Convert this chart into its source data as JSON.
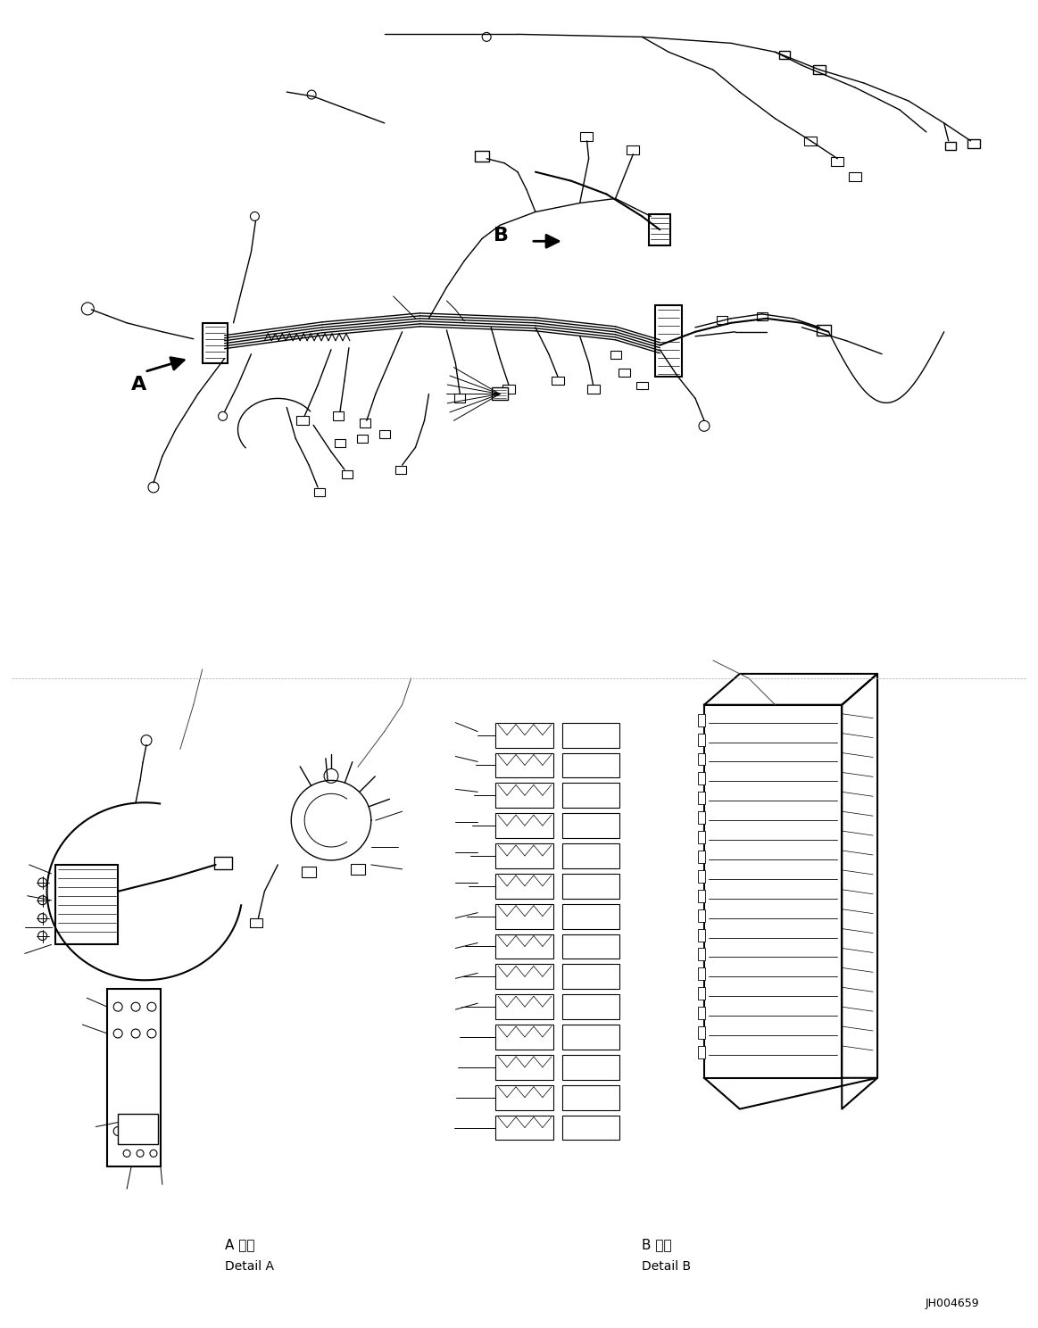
{
  "background_color": "#ffffff",
  "line_color": "#000000",
  "figure_width": 11.63,
  "figure_height": 14.88,
  "dpi": 100,
  "part_code": "JH004659",
  "label_A": "A",
  "label_B": "B",
  "detail_A_jp": "A 詳細",
  "detail_A_en": "Detail A",
  "detail_B_jp": "B 詳細",
  "detail_B_en": "Detail B"
}
